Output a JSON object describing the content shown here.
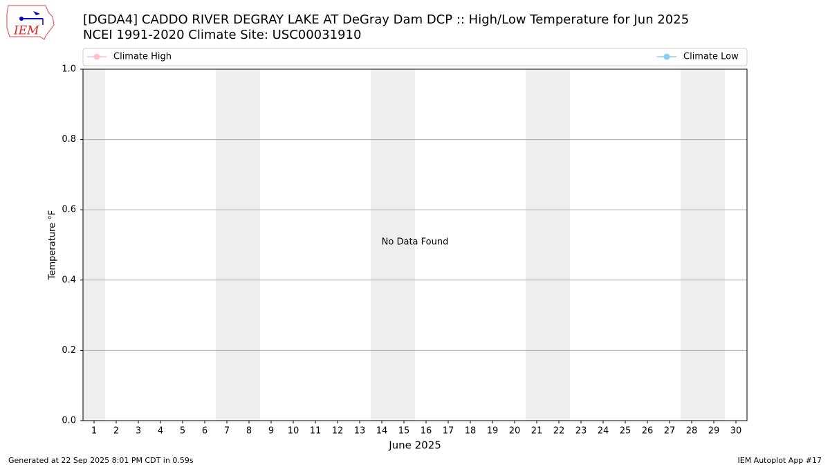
{
  "logo_text": "IEM",
  "chart_data": {
    "type": "line",
    "title": "[DGDA4] CADDO RIVER DEGRAY LAKE  AT DeGray Dam DCP :: High/Low Temperature for Jun 2025",
    "subtitle": "NCEI 1991-2020 Climate Site: USC00031910",
    "x_label": "June 2025",
    "y_label": "Temperature °F",
    "annotation": "No Data Found",
    "x": [],
    "series": [
      {
        "name": "Climate High",
        "color": "#ffc0cb",
        "values": []
      },
      {
        "name": "Climate Low",
        "color": "#87ceeb",
        "values": []
      }
    ],
    "xlim": [
      0.5,
      30.5
    ],
    "xticks": [
      1,
      2,
      3,
      4,
      5,
      6,
      7,
      8,
      9,
      10,
      11,
      12,
      13,
      14,
      15,
      16,
      17,
      18,
      19,
      20,
      21,
      22,
      23,
      24,
      25,
      26,
      27,
      28,
      29,
      30
    ],
    "ylim": [
      0,
      1
    ],
    "yticks": [
      {
        "value": 0,
        "label": "0.0"
      },
      0.2,
      0.4,
      0.6,
      0.8,
      {
        "value": 1,
        "label": "1.0"
      }
    ],
    "shaded_days": [
      1,
      7,
      8,
      14,
      15,
      21,
      22,
      28,
      29
    ],
    "shade_color": "#eeeeee",
    "grid": true,
    "legend": "top",
    "footer_left": "Generated at 22 Sep 2025 8:01 PM CDT in 0.59s",
    "footer_right": "IEM Autoplot App #17"
  }
}
